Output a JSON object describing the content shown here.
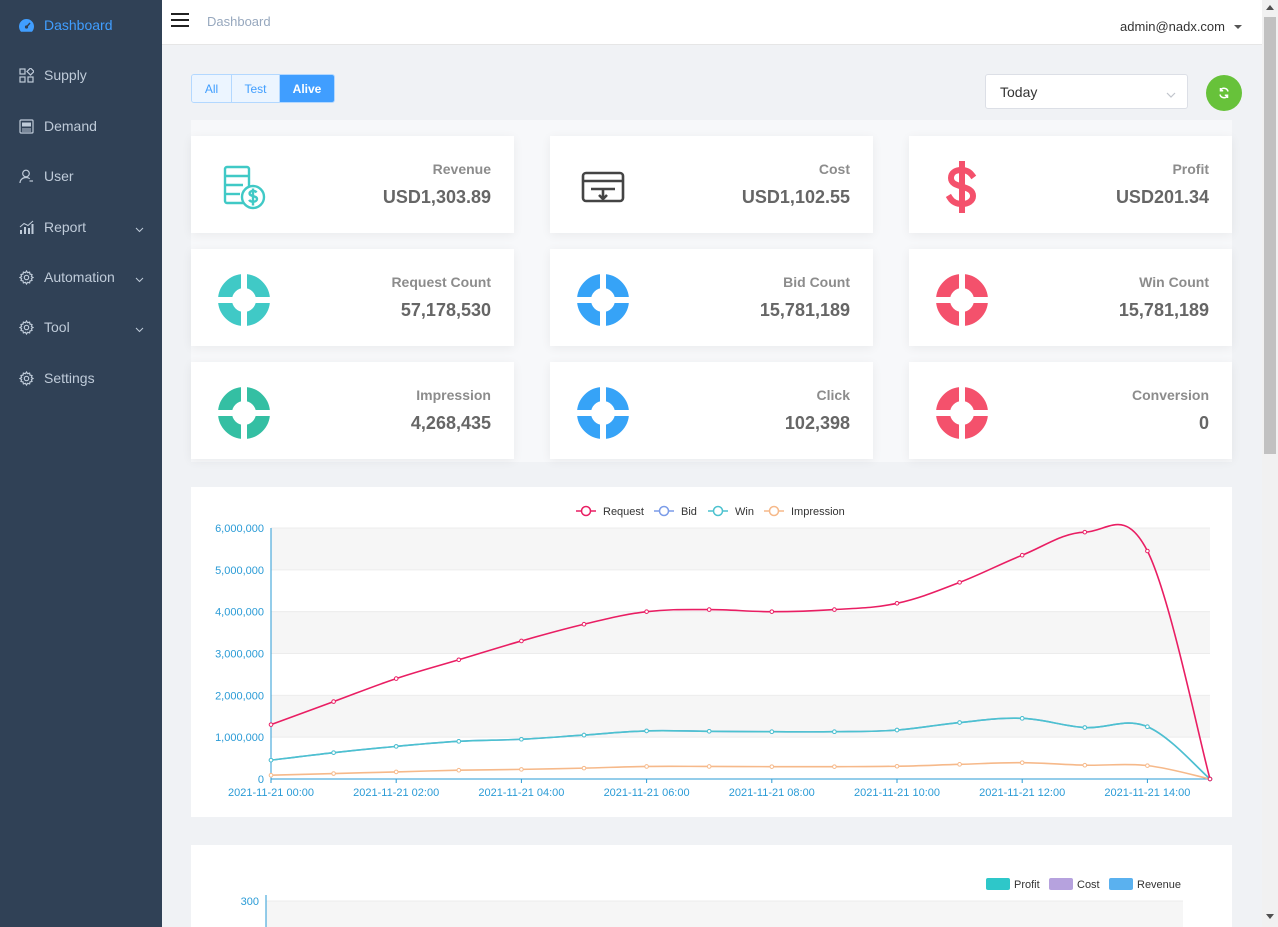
{
  "sidebar": {
    "items": [
      {
        "label": "Dashboard",
        "icon": "dashboard-icon",
        "active": true,
        "has_children": false
      },
      {
        "label": "Supply",
        "icon": "grid-icon",
        "active": false,
        "has_children": false
      },
      {
        "label": "Demand",
        "icon": "ad-icon",
        "active": false,
        "has_children": false
      },
      {
        "label": "User",
        "icon": "user-icon",
        "active": false,
        "has_children": false
      },
      {
        "label": "Report",
        "icon": "chart-icon",
        "active": false,
        "has_children": true
      },
      {
        "label": "Automation",
        "icon": "gear-icon",
        "active": false,
        "has_children": true
      },
      {
        "label": "Tool",
        "icon": "gear-icon",
        "active": false,
        "has_children": true
      },
      {
        "label": "Settings",
        "icon": "gear-icon",
        "active": false,
        "has_children": false
      }
    ]
  },
  "header": {
    "breadcrumb": "Dashboard",
    "user": "admin@nadx.com"
  },
  "filters": {
    "segments": [
      "All",
      "Test",
      "Alive"
    ],
    "selected": "Alive",
    "date_range": "Today"
  },
  "colors": {
    "sidebar_bg": "#304156",
    "accent": "#409eff",
    "teal": "#40c9c6",
    "blue": "#36a3f7",
    "red": "#f4516c",
    "green": "#34bfa3",
    "refresh": "#67c23a"
  },
  "stats": [
    {
      "label": "Revenue",
      "value": "USD1,303.89",
      "icon": "revenue-icon",
      "color": "#40c9c6"
    },
    {
      "label": "Cost",
      "value": "USD1,102.55",
      "icon": "cost-icon",
      "color": "#444444"
    },
    {
      "label": "Profit",
      "value": "USD201.34",
      "icon": "dollar-icon",
      "color": "#f4516c"
    },
    {
      "label": "Request Count",
      "value": "57,178,530",
      "icon": "ring-icon",
      "color": "#40c9c6"
    },
    {
      "label": "Bid Count",
      "value": "15,781,189",
      "icon": "ring-icon",
      "color": "#36a3f7"
    },
    {
      "label": "Win Count",
      "value": "15,781,189",
      "icon": "ring-icon",
      "color": "#f4516c"
    },
    {
      "label": "Impression",
      "value": "4,268,435",
      "icon": "ring-icon",
      "color": "#34bfa3"
    },
    {
      "label": "Click",
      "value": "102,398",
      "icon": "ring-icon",
      "color": "#36a3f7"
    },
    {
      "label": "Conversion",
      "value": "0",
      "icon": "ring-icon",
      "color": "#f4516c"
    }
  ],
  "chart_data": [
    {
      "type": "line",
      "x": [
        "2021-11-21 00:00",
        "2021-11-21 01:00",
        "2021-11-21 02:00",
        "2021-11-21 03:00",
        "2021-11-21 04:00",
        "2021-11-21 05:00",
        "2021-11-21 06:00",
        "2021-11-21 07:00",
        "2021-11-21 08:00",
        "2021-11-21 09:00",
        "2021-11-21 10:00",
        "2021-11-21 11:00",
        "2021-11-21 12:00",
        "2021-11-21 13:00",
        "2021-11-21 14:00",
        "2021-11-21 15:00"
      ],
      "x_ticks": [
        "2021-11-21 00:00",
        "2021-11-21 02:00",
        "2021-11-21 04:00",
        "2021-11-21 06:00",
        "2021-11-21 08:00",
        "2021-11-21 10:00",
        "2021-11-21 12:00",
        "2021-11-21 14:00"
      ],
      "y_ticks": [
        "0",
        "1,000,000",
        "2,000,000",
        "3,000,000",
        "4,000,000",
        "5,000,000",
        "6,000,000"
      ],
      "ylim": [
        0,
        6000000
      ],
      "legend_position": "top-center",
      "series": [
        {
          "name": "Request",
          "color": "#e91e63",
          "values": [
            1300000,
            1850000,
            2400000,
            2850000,
            3300000,
            3700000,
            4000000,
            4050000,
            4000000,
            4050000,
            4200000,
            4700000,
            5350000,
            5900000,
            5450000,
            0
          ]
        },
        {
          "name": "Bid",
          "color": "#7b9ce8",
          "values": [
            450000,
            630000,
            780000,
            900000,
            950000,
            1050000,
            1150000,
            1140000,
            1130000,
            1130000,
            1170000,
            1350000,
            1450000,
            1230000,
            1250000,
            0
          ]
        },
        {
          "name": "Win",
          "color": "#4cc2cf",
          "values": [
            450000,
            630000,
            780000,
            900000,
            950000,
            1050000,
            1150000,
            1140000,
            1130000,
            1130000,
            1170000,
            1350000,
            1450000,
            1230000,
            1250000,
            0
          ]
        },
        {
          "name": "Impression",
          "color": "#f6b98a",
          "values": [
            90000,
            130000,
            170000,
            210000,
            230000,
            260000,
            300000,
            300000,
            295000,
            295000,
            305000,
            350000,
            390000,
            330000,
            320000,
            0
          ]
        }
      ]
    },
    {
      "type": "bar",
      "y_ticks": [
        "300"
      ],
      "legend_position": "top-right",
      "series": [
        {
          "name": "Profit",
          "color": "#2ec7c9"
        },
        {
          "name": "Cost",
          "color": "#b6a2de"
        },
        {
          "name": "Revenue",
          "color": "#5ab1ef"
        }
      ]
    }
  ]
}
